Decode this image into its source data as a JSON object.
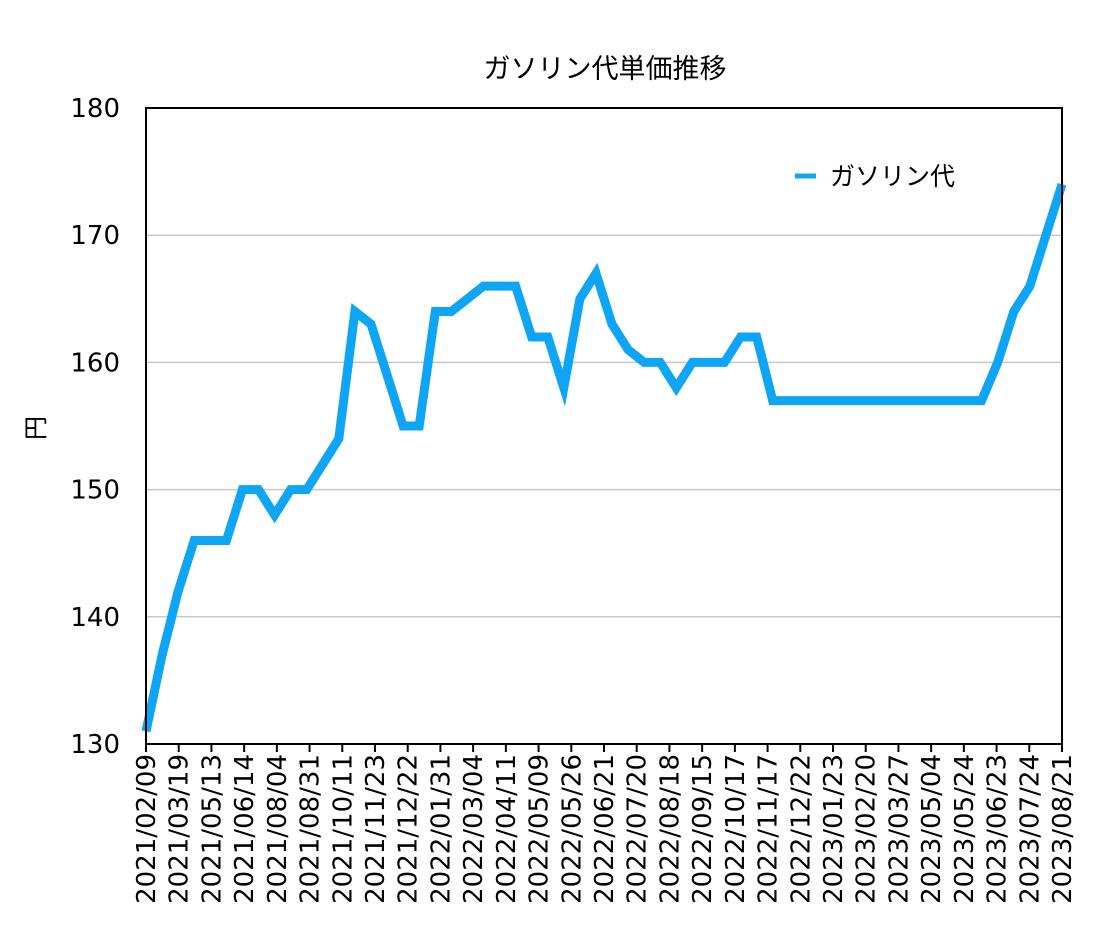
{
  "chart_data": {
    "type": "line",
    "title": "ガソリン代単価推移",
    "xlabel": "",
    "ylabel": "円",
    "ylim": [
      130,
      180
    ],
    "y_ticks": [
      130,
      140,
      150,
      160,
      170,
      180
    ],
    "grid": "horizontal",
    "legend_position": "top-right",
    "series_color": "#0ea5f5",
    "x_tick_labels": [
      "2021/02/09",
      "2021/03/19",
      "2021/05/13",
      "2021/06/14",
      "2021/08/04",
      "2021/08/31",
      "2021/10/11",
      "2021/11/23",
      "2021/12/22",
      "2022/01/31",
      "2022/03/04",
      "2022/04/11",
      "2022/05/09",
      "2022/05/26",
      "2022/06/21",
      "2022/07/20",
      "2022/08/18",
      "2022/09/15",
      "2022/10/17",
      "2022/11/17",
      "2022/12/22",
      "2023/01/23",
      "2023/02/20",
      "2023/03/27",
      "2023/05/04",
      "2023/05/24",
      "2023/06/23",
      "2023/07/24",
      "2023/08/21"
    ],
    "series": [
      {
        "name": "ガソリン代",
        "values": [
          131,
          137,
          142,
          146,
          146,
          146,
          150,
          150,
          148,
          150,
          150,
          152,
          154,
          164,
          163,
          159,
          155,
          155,
          164,
          164,
          165,
          166,
          166,
          166,
          162,
          162,
          158,
          165,
          167,
          163,
          161,
          160,
          160,
          158,
          160,
          160,
          160,
          162,
          162,
          157,
          157,
          157,
          157,
          157,
          157,
          157,
          157,
          157,
          157,
          157,
          157,
          157,
          157,
          160,
          164,
          166,
          170,
          174
        ]
      }
    ]
  }
}
